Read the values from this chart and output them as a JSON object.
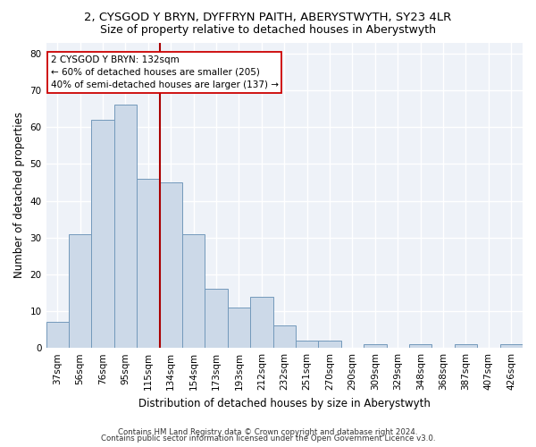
{
  "title1": "2, CYSGOD Y BRYN, DYFFRYN PAITH, ABERYSTWYTH, SY23 4LR",
  "title2": "Size of property relative to detached houses in Aberystwyth",
  "xlabel": "Distribution of detached houses by size in Aberystwyth",
  "ylabel": "Number of detached properties",
  "categories": [
    "37sqm",
    "56sqm",
    "76sqm",
    "95sqm",
    "115sqm",
    "134sqm",
    "154sqm",
    "173sqm",
    "193sqm",
    "212sqm",
    "232sqm",
    "251sqm",
    "270sqm",
    "290sqm",
    "309sqm",
    "329sqm",
    "348sqm",
    "368sqm",
    "387sqm",
    "407sqm",
    "426sqm"
  ],
  "values": [
    7,
    31,
    62,
    66,
    46,
    45,
    31,
    16,
    11,
    14,
    6,
    2,
    2,
    0,
    1,
    0,
    1,
    0,
    1,
    0,
    1
  ],
  "bar_color": "#ccd9e8",
  "bar_edge_color": "#7399bb",
  "vline_pos": 4.5,
  "vline_color": "#aa0000",
  "annotation_line1": "2 CYSGOD Y BRYN: 132sqm",
  "annotation_line2": "← 60% of detached houses are smaller (205)",
  "annotation_line3": "40% of semi-detached houses are larger (137) →",
  "annotation_box_edge": "#cc0000",
  "footer1": "Contains HM Land Registry data © Crown copyright and database right 2024.",
  "footer2": "Contains public sector information licensed under the Open Government Licence v3.0.",
  "ylim": [
    0,
    83
  ],
  "yticks": [
    0,
    10,
    20,
    30,
    40,
    50,
    60,
    70,
    80
  ],
  "bg_color": "#eef2f8",
  "grid_color": "white",
  "title1_fontsize": 9.5,
  "title2_fontsize": 9,
  "ylabel_fontsize": 8.5,
  "xlabel_fontsize": 8.5,
  "tick_fontsize": 7.5,
  "footer_fontsize": 6.2
}
